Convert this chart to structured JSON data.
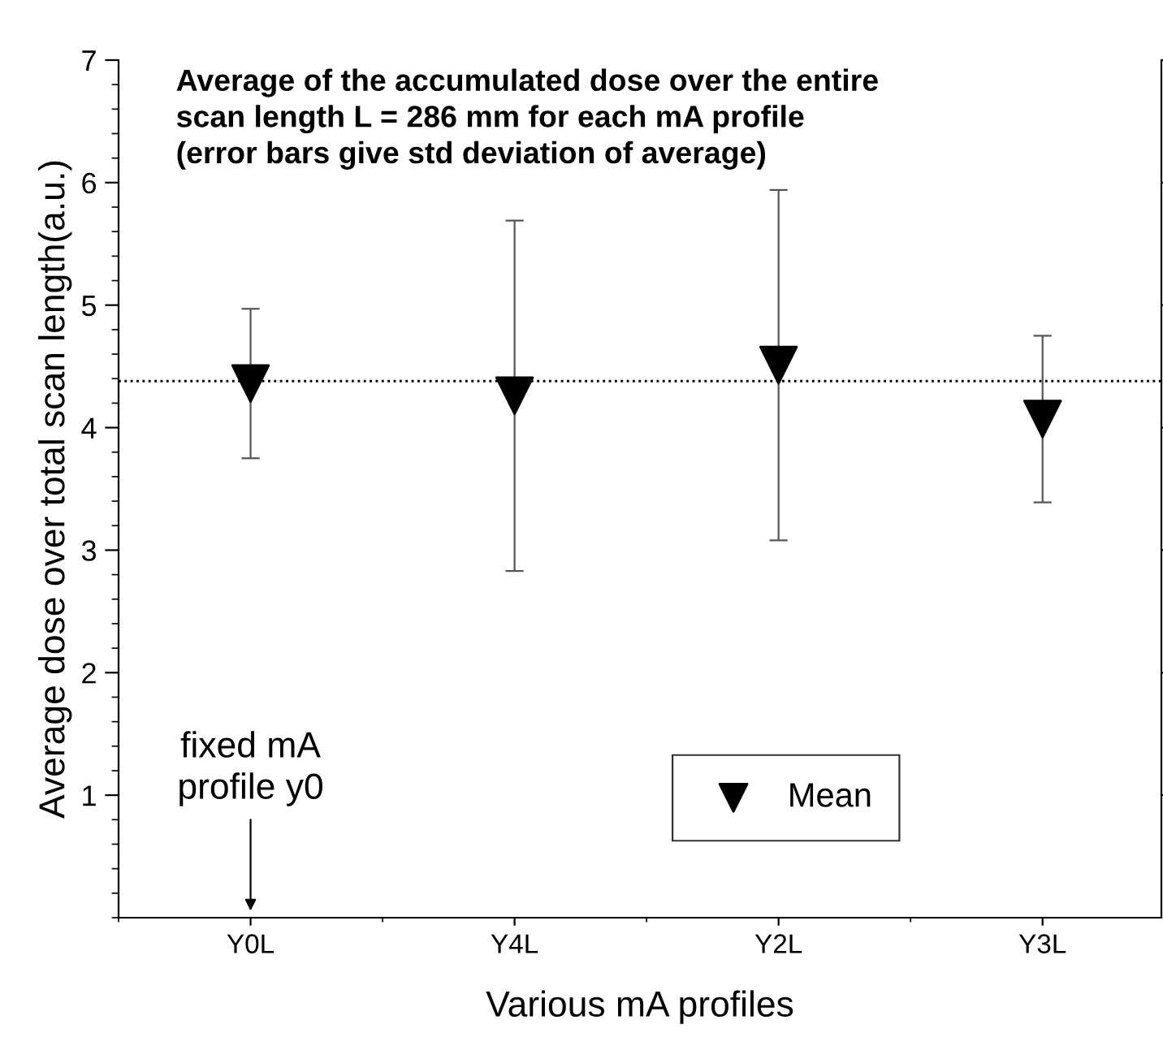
{
  "chart_data": {
    "type": "scatter",
    "title": "Average of the accumulated dose over the entire\nscan length L = 286 mm for each mA profile\n(error bars give std deviation of average)",
    "xlabel": "Various mA profiles",
    "ylabel": "Average dose over total scan length(a.u.)",
    "categories": [
      "Y0L",
      "Y4L",
      "Y2L",
      "Y3L"
    ],
    "series": [
      {
        "name": "Mean",
        "color": "#000000",
        "values": [
          4.36,
          4.26,
          4.51,
          4.07
        ],
        "errors": [
          0.61,
          1.43,
          1.43,
          0.68
        ]
      }
    ],
    "ylim": [
      0,
      7
    ],
    "yticks": [
      1,
      2,
      3,
      4,
      5,
      6,
      7
    ],
    "ref_lines": [
      {
        "axis": "y",
        "value": 4.38,
        "line_style": "dotted",
        "color": "#000000"
      }
    ],
    "annotations": [
      "fixed mA\nprofile y0"
    ],
    "marker": "triangle",
    "legend": "bottom right",
    "grid": false
  }
}
